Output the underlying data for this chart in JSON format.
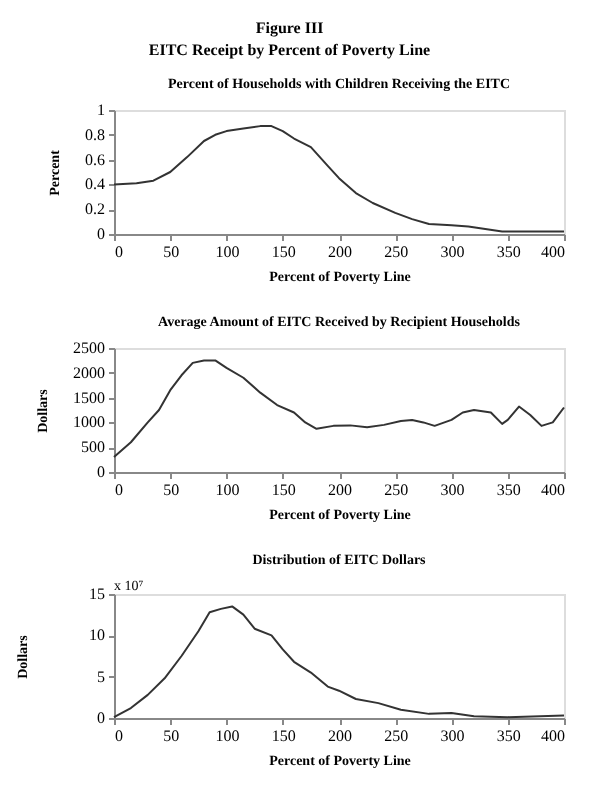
{
  "chart_data": [
    {
      "type": "line",
      "title": "Percent of Households with Children Receiving the EITC",
      "annotations": [
        "Figure III",
        "EITC Receipt by Percent of Poverty Line"
      ],
      "xlabel": "Percent of Poverty Line",
      "ylabel": "Percent",
      "xlim": [
        0,
        400
      ],
      "xticks": [
        0,
        50,
        100,
        150,
        200,
        250,
        300,
        350,
        400
      ],
      "ylim": [
        0,
        1
      ],
      "yticks": [
        0,
        0.2,
        0.4,
        0.6,
        0.8,
        1
      ],
      "grid": false,
      "series": [
        {
          "color": "#333333",
          "x": [
            0,
            20,
            35,
            50,
            65,
            80,
            90,
            100,
            115,
            130,
            140,
            150,
            160,
            175,
            190,
            200,
            215,
            230,
            250,
            265,
            280,
            300,
            315,
            330,
            345,
            360,
            400
          ],
          "values": [
            0.4,
            0.41,
            0.43,
            0.5,
            0.62,
            0.75,
            0.8,
            0.83,
            0.85,
            0.87,
            0.87,
            0.83,
            0.77,
            0.7,
            0.55,
            0.45,
            0.33,
            0.25,
            0.17,
            0.12,
            0.08,
            0.07,
            0.06,
            0.04,
            0.02,
            0.02,
            0.02
          ]
        }
      ]
    },
    {
      "type": "line",
      "title": "Average Amount of EITC Received by Recipient Households",
      "xlabel": "Percent of Poverty Line",
      "ylabel": "Dollars",
      "xlim": [
        0,
        400
      ],
      "xticks": [
        0,
        50,
        100,
        150,
        200,
        250,
        300,
        350,
        400
      ],
      "ylim": [
        0,
        2500
      ],
      "yticks": [
        0,
        500,
        1000,
        1500,
        2000,
        2500
      ],
      "grid": false,
      "series": [
        {
          "color": "#333333",
          "x": [
            0,
            15,
            30,
            40,
            50,
            60,
            70,
            80,
            90,
            100,
            115,
            130,
            145,
            160,
            170,
            180,
            195,
            210,
            225,
            240,
            255,
            265,
            275,
            285,
            300,
            310,
            320,
            335,
            345,
            350,
            360,
            370,
            380,
            390,
            400
          ],
          "values": [
            300,
            600,
            1000,
            1250,
            1650,
            1950,
            2200,
            2250,
            2250,
            2100,
            1900,
            1600,
            1350,
            1200,
            1000,
            870,
            930,
            940,
            900,
            950,
            1030,
            1050,
            1000,
            930,
            1050,
            1200,
            1250,
            1200,
            970,
            1050,
            1320,
            1150,
            930,
            1000,
            1300
          ]
        }
      ]
    },
    {
      "type": "line",
      "title": "Distribution of EITC Dollars",
      "xlabel": "Percent of Poverty Line",
      "ylabel": "Dollars",
      "annotations": [
        "x 10⁷"
      ],
      "xlim": [
        0,
        400
      ],
      "xticks": [
        0,
        50,
        100,
        150,
        200,
        250,
        300,
        350,
        400
      ],
      "ylim": [
        0,
        15
      ],
      "yticks": [
        0,
        5,
        10,
        15
      ],
      "grid": false,
      "series": [
        {
          "color": "#333333",
          "x": [
            0,
            15,
            30,
            45,
            60,
            75,
            85,
            95,
            105,
            115,
            125,
            140,
            150,
            160,
            175,
            190,
            200,
            215,
            235,
            255,
            280,
            300,
            320,
            350,
            400
          ],
          "values": [
            0.1,
            1.2,
            2.8,
            4.8,
            7.5,
            10.5,
            12.8,
            13.2,
            13.5,
            12.5,
            10.8,
            10.0,
            8.3,
            6.8,
            5.5,
            3.8,
            3.3,
            2.3,
            1.8,
            1.0,
            0.5,
            0.6,
            0.2,
            0.1,
            0.3
          ]
        }
      ]
    }
  ]
}
